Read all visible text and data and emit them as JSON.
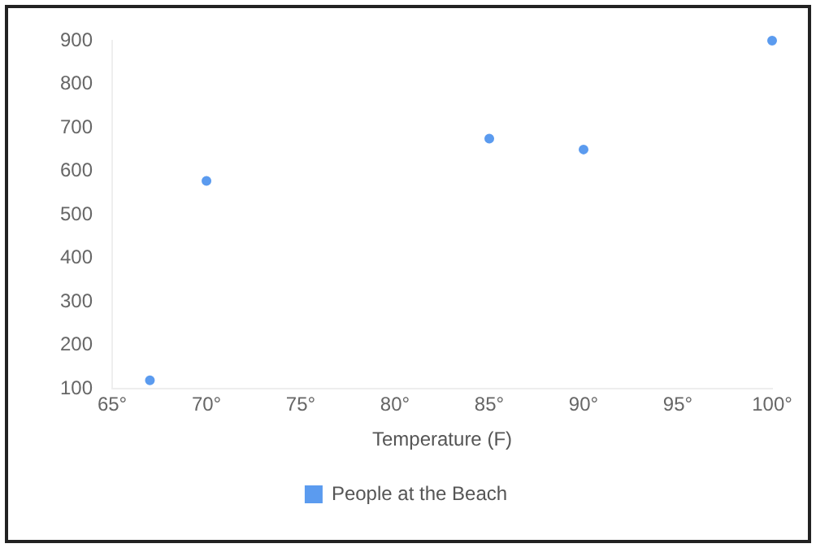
{
  "chart_data": {
    "type": "scatter",
    "xlabel": "Temperature (F)",
    "x": [
      67,
      70,
      85,
      90,
      100
    ],
    "series": [
      {
        "name": "People at the Beach",
        "color": "#5b9bef",
        "values": [
          120,
          578,
          675,
          650,
          900
        ]
      }
    ],
    "xlim": [
      65,
      100
    ],
    "xticks": [
      {
        "value": 65,
        "label": "65°"
      },
      {
        "value": 70,
        "label": "70°"
      },
      {
        "value": 75,
        "label": "75°"
      },
      {
        "value": 80,
        "label": "80°"
      },
      {
        "value": 85,
        "label": "85°"
      },
      {
        "value": 90,
        "label": "90°"
      },
      {
        "value": 95,
        "label": "95°"
      },
      {
        "value": 100,
        "label": "100°"
      }
    ],
    "ylim": [
      100,
      900
    ],
    "yticks": [
      100,
      200,
      300,
      400,
      500,
      600,
      700,
      800,
      900
    ],
    "grid": false,
    "legend": "bottom",
    "marker": "circle"
  }
}
